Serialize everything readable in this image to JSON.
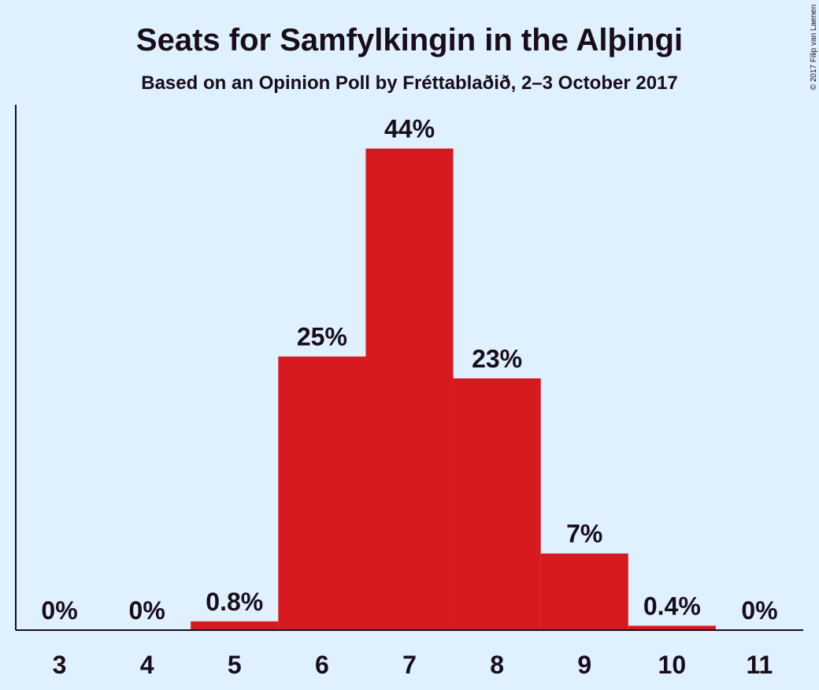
{
  "chart_data": {
    "type": "bar",
    "title": "Seats for Samfylkingin in the Alþingi",
    "subtitle": "Based on an Opinion Poll by Fréttablaðið, 2–3 October 2017",
    "copyright": "© 2017 Filip van Laenen",
    "categories": [
      "3",
      "4",
      "5",
      "6",
      "7",
      "8",
      "9",
      "10",
      "11"
    ],
    "values": [
      0,
      0,
      0.8,
      25,
      44,
      23,
      7,
      0.4,
      0
    ],
    "value_labels": [
      "0%",
      "0%",
      "0.8%",
      "25%",
      "44%",
      "23%",
      "7%",
      "0.4%",
      "0%"
    ],
    "ylim": [
      0,
      48
    ],
    "bar_color": "#d71920",
    "background_color": "#dff0ff",
    "grid": false,
    "legend": "none"
  }
}
